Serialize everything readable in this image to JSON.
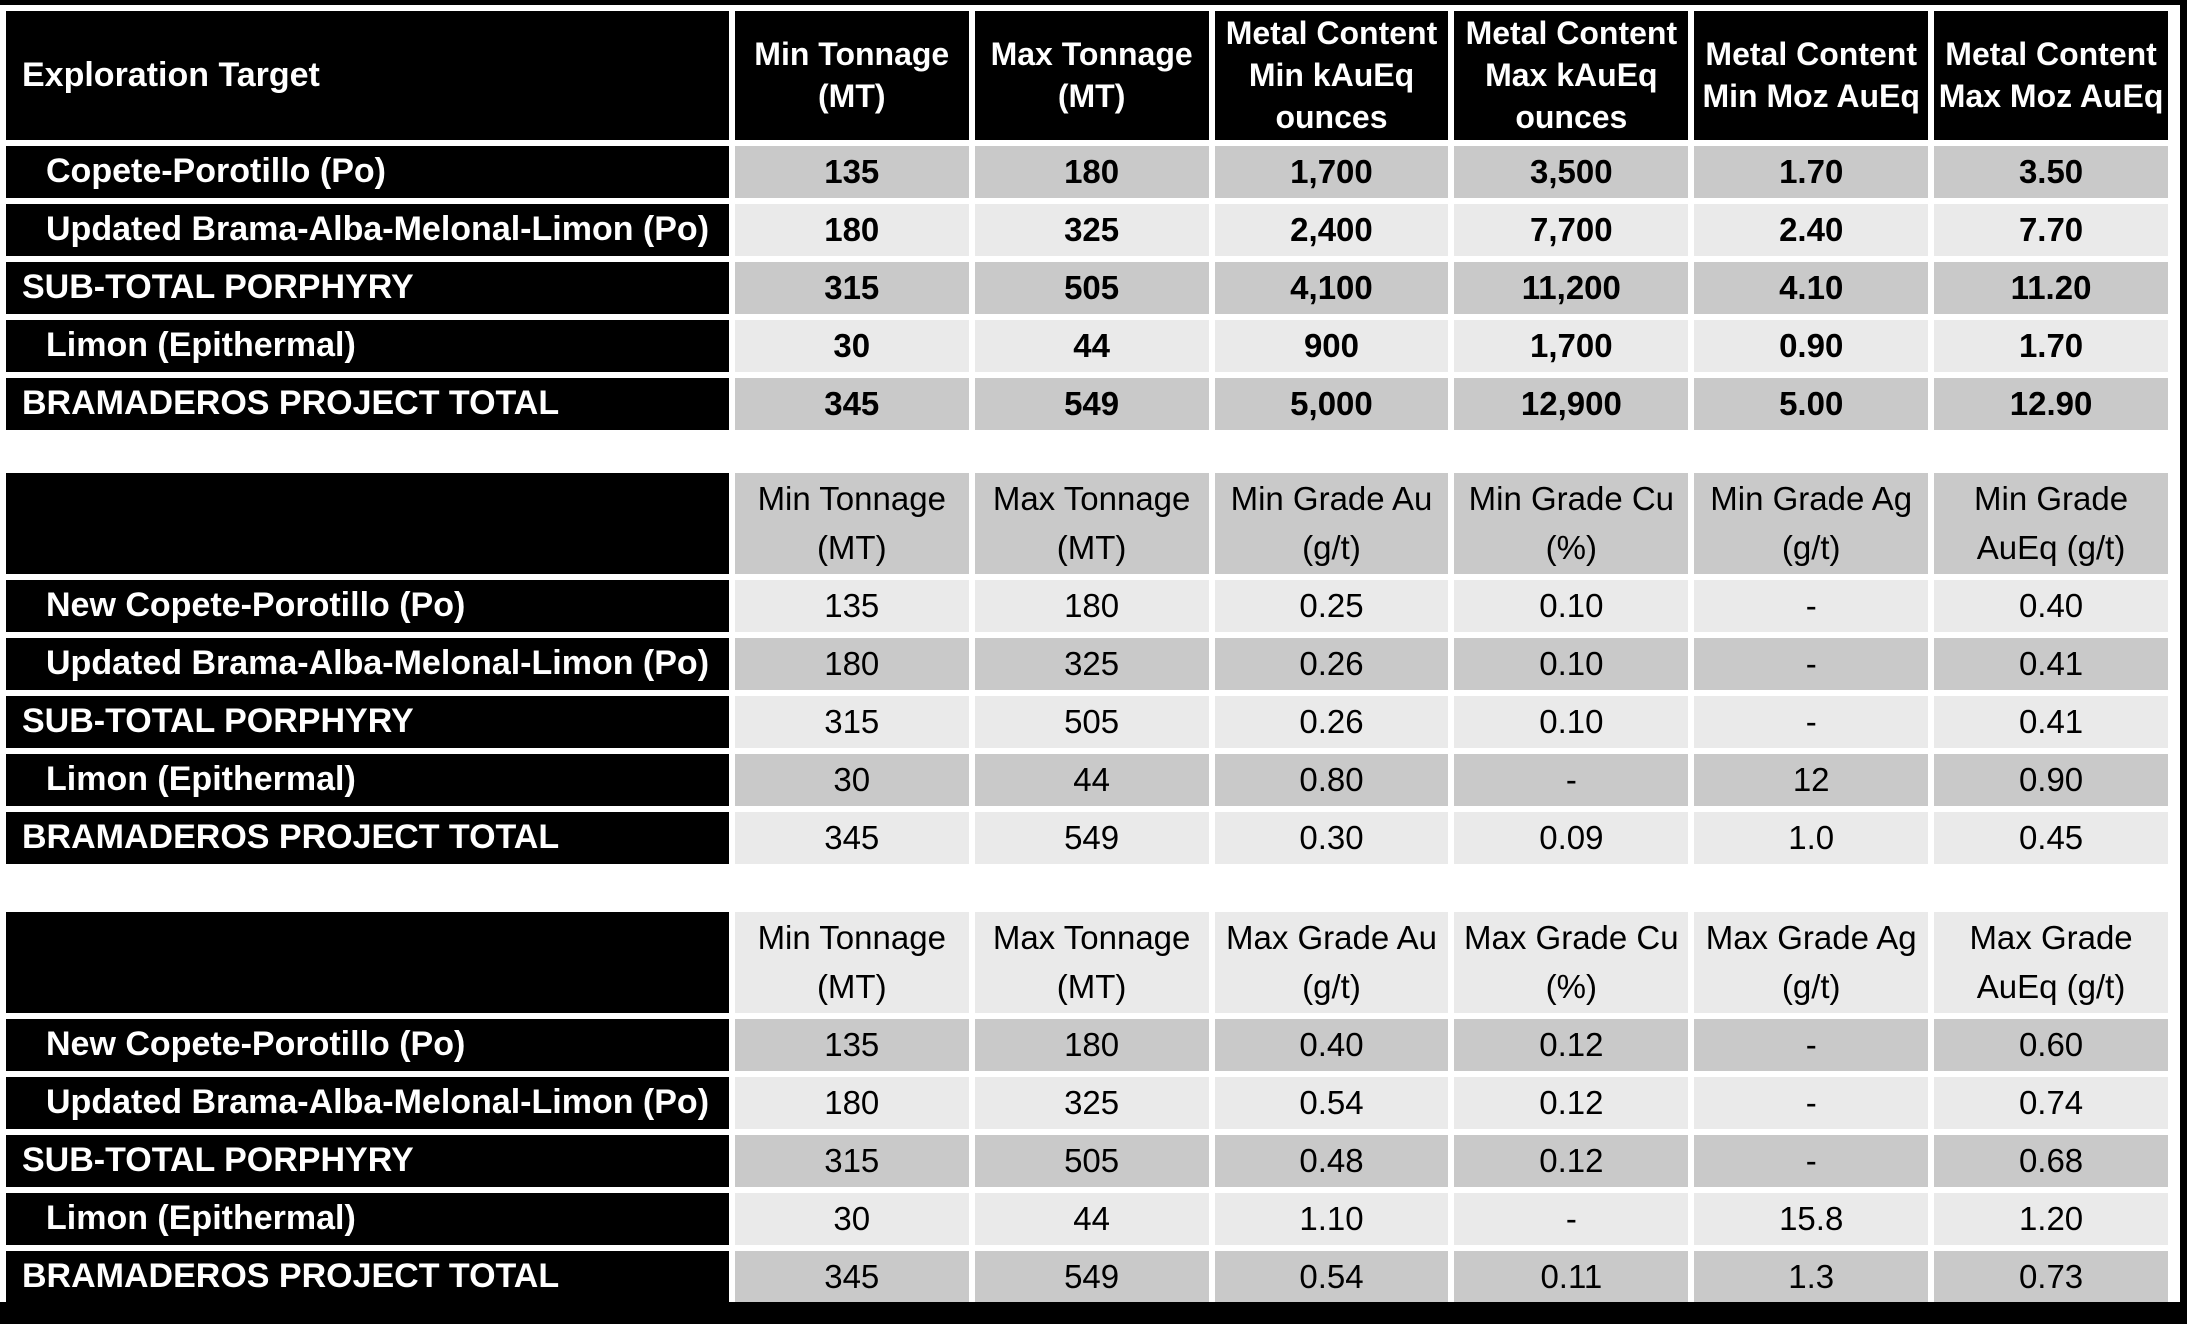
{
  "colors": {
    "header_bg": "#000000",
    "header_text": "#ffffff",
    "row_dark": "#c9c9c9",
    "row_light": "#eaeaea",
    "frame": "#000000"
  },
  "table1": {
    "columns": [
      "Exploration Target",
      "Min Tonnage\n(MT)",
      "Max Tonnage\n(MT)",
      "Metal Content\nMin kAuEq\nounces",
      "Metal Content\nMax kAuEq\nounces",
      "Metal Content\nMin Moz AuEq",
      "Metal Content\nMax Moz AuEq"
    ],
    "rows": [
      {
        "label": "Copete-Porotillo (Po)",
        "values": [
          "135",
          "180",
          "1,700",
          "3,500",
          "1.70",
          "3.50"
        ]
      },
      {
        "label": "Updated Brama-Alba-Melonal-Limon (Po)",
        "values": [
          "180",
          "325",
          "2,400",
          "7,700",
          "2.40",
          "7.70"
        ]
      },
      {
        "label": "SUB-TOTAL PORPHYRY",
        "values": [
          "315",
          "505",
          "4,100",
          "11,200",
          "4.10",
          "11.20"
        ]
      },
      {
        "label": "Limon (Epithermal)",
        "values": [
          "30",
          "44",
          "900",
          "1,700",
          "0.90",
          "1.70"
        ]
      },
      {
        "label": "BRAMADEROS PROJECT TOTAL",
        "values": [
          "345",
          "549",
          "5,000",
          "12,900",
          "5.00",
          "12.90"
        ]
      }
    ]
  },
  "table2": {
    "columns": [
      "",
      "Min Tonnage\n(MT)",
      "Max Tonnage\n(MT)",
      "Min Grade Au\n(g/t)",
      "Min Grade Cu\n(%)",
      "Min Grade Ag\n(g/t)",
      "Min Grade\nAuEq (g/t)"
    ],
    "rows": [
      {
        "label": "New Copete-Porotillo (Po)",
        "values": [
          "135",
          "180",
          "0.25",
          "0.10",
          "-",
          "0.40"
        ]
      },
      {
        "label": "Updated Brama-Alba-Melonal-Limon (Po)",
        "values": [
          "180",
          "325",
          "0.26",
          "0.10",
          "-",
          "0.41"
        ]
      },
      {
        "label": "SUB-TOTAL PORPHYRY",
        "values": [
          "315",
          "505",
          "0.26",
          "0.10",
          "-",
          "0.41"
        ]
      },
      {
        "label": "Limon (Epithermal)",
        "values": [
          "30",
          "44",
          "0.80",
          "-",
          "12",
          "0.90"
        ]
      },
      {
        "label": "BRAMADEROS PROJECT TOTAL",
        "values": [
          "345",
          "549",
          "0.30",
          "0.09",
          "1.0",
          "0.45"
        ]
      }
    ]
  },
  "table3": {
    "columns": [
      "",
      "Min Tonnage\n(MT)",
      "Max Tonnage\n(MT)",
      "Max Grade Au\n(g/t)",
      "Max Grade Cu\n(%)",
      "Max Grade Ag\n(g/t)",
      "Max Grade\nAuEq (g/t)"
    ],
    "rows": [
      {
        "label": "New Copete-Porotillo (Po)",
        "values": [
          "135",
          "180",
          "0.40",
          "0.12",
          "-",
          "0.60"
        ]
      },
      {
        "label": "Updated Brama-Alba-Melonal-Limon (Po)",
        "values": [
          "180",
          "325",
          "0.54",
          "0.12",
          "-",
          "0.74"
        ]
      },
      {
        "label": "SUB-TOTAL PORPHYRY",
        "values": [
          "315",
          "505",
          "0.48",
          "0.12",
          "-",
          "0.68"
        ]
      },
      {
        "label": "Limon (Epithermal)",
        "values": [
          "30",
          "44",
          "1.10",
          "-",
          "15.8",
          "1.20"
        ]
      },
      {
        "label": "BRAMADEROS PROJECT TOTAL",
        "values": [
          "345",
          "549",
          "0.54",
          "0.11",
          "1.3",
          "0.73"
        ]
      }
    ]
  }
}
